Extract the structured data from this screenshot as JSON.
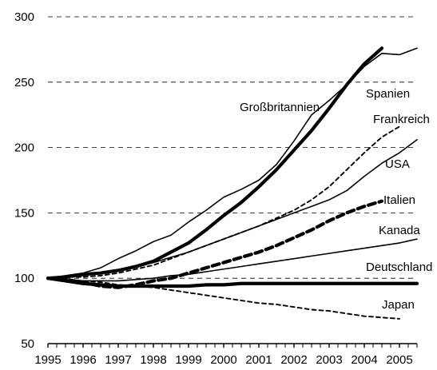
{
  "chart_data": {
    "type": "line",
    "x": [
      1995,
      1995.5,
      1996,
      1996.5,
      1997,
      1997.5,
      1998,
      1998.5,
      1999,
      1999.5,
      2000,
      2000.5,
      2001,
      2001.5,
      2002,
      2002.5,
      2003,
      2003.5,
      2004,
      2004.5,
      2005,
      2005.5
    ],
    "x_tick_labels": [
      "1995",
      "1996",
      "1997",
      "1998",
      "1999",
      "2000",
      "2001",
      "2002",
      "2003",
      "2004",
      "2005"
    ],
    "y_tick_labels": [
      "50",
      "100",
      "150",
      "200",
      "250",
      "300"
    ],
    "ylim": [
      50,
      300
    ],
    "grid": "horizontal dashed",
    "series": [
      {
        "name": "Großbritannien",
        "style": "thin",
        "values": [
          100,
          102,
          104,
          108,
          115,
          121,
          128,
          133,
          143,
          152,
          162,
          168,
          175,
          187,
          205,
          225,
          236,
          248,
          262,
          272,
          271,
          276
        ]
      },
      {
        "name": "Spanien",
        "style": "thick",
        "values": [
          100,
          101,
          103,
          104,
          106,
          109,
          113,
          120,
          127,
          137,
          148,
          158,
          170,
          183,
          198,
          213,
          230,
          248,
          264,
          276,
          null,
          null
        ]
      },
      {
        "name": "Frankreich",
        "style": "dashed",
        "values": [
          100,
          101,
          101,
          102,
          104,
          107,
          110,
          115,
          120,
          125,
          130,
          135,
          140,
          146,
          152,
          160,
          170,
          183,
          196,
          208,
          216,
          null
        ]
      },
      {
        "name": "USA",
        "style": "thin",
        "values": [
          100,
          101,
          102,
          104,
          106,
          109,
          112,
          116,
          120,
          125,
          130,
          135,
          140,
          145,
          150,
          155,
          160,
          167,
          178,
          188,
          196,
          206
        ]
      },
      {
        "name": "Italien",
        "style": "thick-dashed",
        "values": [
          100,
          99,
          97,
          94,
          93,
          95,
          98,
          100,
          104,
          108,
          112,
          116,
          120,
          125,
          131,
          137,
          144,
          150,
          155,
          159,
          null,
          null
        ]
      },
      {
        "name": "Kanada",
        "style": "thin",
        "values": [
          100,
          99,
          98,
          98,
          98,
          99,
          100,
          102,
          103,
          105,
          107,
          109,
          111,
          113,
          115,
          117,
          119,
          121,
          123,
          125,
          127,
          130
        ]
      },
      {
        "name": "Deutschland",
        "style": "thick",
        "values": [
          100,
          98,
          96,
          95,
          94,
          94,
          94,
          94,
          94,
          95,
          95,
          96,
          96,
          96,
          96,
          96,
          96,
          96,
          96,
          96,
          96,
          96
        ]
      },
      {
        "name": "Japan",
        "style": "dashed",
        "values": [
          100,
          99,
          98,
          97,
          95,
          94,
          93,
          91,
          89,
          87,
          85,
          83,
          81,
          80,
          78,
          76,
          75,
          73,
          71,
          70,
          69,
          null
        ]
      }
    ],
    "labels": [
      {
        "series": "Spanien",
        "text": "Spanien"
      },
      {
        "series": "Großbritannien",
        "text": "Großbritannien"
      },
      {
        "series": "Frankreich",
        "text": "Frankreich"
      },
      {
        "series": "USA",
        "text": "USA"
      },
      {
        "series": "Italien",
        "text": "Italien"
      },
      {
        "series": "Kanada",
        "text": "Kanada"
      },
      {
        "series": "Deutschland",
        "text": "Deutschland"
      },
      {
        "series": "Japan",
        "text": "Japan"
      }
    ]
  }
}
